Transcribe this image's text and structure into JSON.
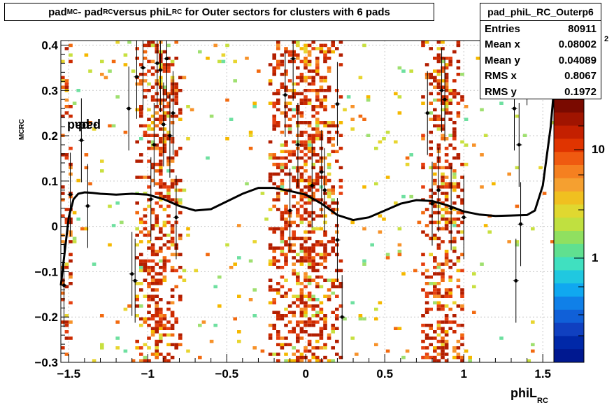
{
  "title": {
    "main": "pad",
    "sub1": "MC",
    "mid": " - pad",
    "sub2": "RC",
    "rest": " versus phiL",
    "sub3": "RC",
    "end": " for Outer sectors for clusters with 6 pads"
  },
  "stats": {
    "name": "pad_phiL_RC_Outerp6",
    "rows": [
      {
        "label": "Entries",
        "value": "80911"
      },
      {
        "label": "Mean x",
        "value": "0.08002"
      },
      {
        "label": "Mean y",
        "value": "0.04089"
      },
      {
        "label": "RMS x",
        "value": "0.8067"
      },
      {
        "label": "RMS y",
        "value": "0.1972"
      }
    ]
  },
  "xlabel": {
    "main": "phiL",
    "sub": "RC"
  },
  "ylabel": {
    "a": "pad",
    "sub1": "MC",
    "b": " - pad",
    "sub2": "RC"
  },
  "zaxis": {
    "labels": [
      "1",
      "10"
    ],
    "exp_label": "2"
  },
  "chart_data": {
    "type": "heatmap",
    "xlim": [
      -1.55,
      1.57
    ],
    "ylim": [
      -0.3,
      0.41
    ],
    "xticks": [
      -1.5,
      -1,
      -0.5,
      0,
      0.5,
      1,
      1.5
    ],
    "xtick_labels": [
      "−1.5",
      "−1",
      "−0.5",
      "0",
      "0.5",
      "1",
      "1.5"
    ],
    "yticks": [
      -0.3,
      -0.2,
      -0.1,
      0,
      0.1,
      0.2,
      0.3,
      0.4
    ],
    "ytick_labels": [
      "−0.3",
      "−0.2",
      "−0.1",
      "0",
      "0.1",
      "0.2",
      "0.3",
      "0.4"
    ],
    "grid": true,
    "dense_bands": [
      [
        -1.08,
        -0.8
      ],
      [
        -0.25,
        0.22
      ],
      [
        0.73,
        0.98
      ]
    ],
    "fit_curve": {
      "x": [
        -1.55,
        -1.53,
        -1.5,
        -1.47,
        -1.44,
        -1.4,
        -1.35,
        -1.3,
        -1.2,
        -1.1,
        -1.0,
        -0.9,
        -0.8,
        -0.7,
        -0.6,
        -0.5,
        -0.4,
        -0.3,
        -0.2,
        -0.1,
        0.0,
        0.1,
        0.2,
        0.3,
        0.4,
        0.5,
        0.6,
        0.7,
        0.8,
        0.9,
        1.0,
        1.1,
        1.2,
        1.3,
        1.4,
        1.45,
        1.5,
        1.55,
        1.57
      ],
      "y": [
        -0.13,
        -0.07,
        0.02,
        0.06,
        0.072,
        0.075,
        0.074,
        0.072,
        0.07,
        0.072,
        0.07,
        0.06,
        0.045,
        0.035,
        0.038,
        0.055,
        0.072,
        0.085,
        0.085,
        0.078,
        0.07,
        0.05,
        0.025,
        0.014,
        0.02,
        0.035,
        0.05,
        0.058,
        0.056,
        0.046,
        0.033,
        0.026,
        0.023,
        0.024,
        0.025,
        0.035,
        0.09,
        0.22,
        0.3
      ]
    },
    "profile_points": [
      {
        "x": -1.53,
        "y": -0.13
      },
      {
        "x": -1.49,
        "y": 0.07
      },
      {
        "x": -1.42,
        "y": 0.19
      },
      {
        "x": -1.38,
        "y": 0.045
      },
      {
        "x": -1.12,
        "y": 0.26
      },
      {
        "x": -1.1,
        "y": -0.105
      },
      {
        "x": -1.08,
        "y": -0.12
      },
      {
        "x": -1.07,
        "y": 0.33
      },
      {
        "x": -1.03,
        "y": 0.35
      },
      {
        "x": -0.98,
        "y": 0.06
      },
      {
        "x": -0.96,
        "y": 0.18
      },
      {
        "x": -0.94,
        "y": 0.36
      },
      {
        "x": -0.92,
        "y": 0.345
      },
      {
        "x": -0.9,
        "y": 0.225
      },
      {
        "x": -0.88,
        "y": 0.37
      },
      {
        "x": -0.86,
        "y": 0.2
      },
      {
        "x": -0.84,
        "y": 0.25
      },
      {
        "x": -0.82,
        "y": 0.02
      },
      {
        "x": -0.13,
        "y": 0.29
      },
      {
        "x": -0.1,
        "y": 0.035
      },
      {
        "x": -0.08,
        "y": 0.37
      },
      {
        "x": -0.05,
        "y": 0.18
      },
      {
        "x": 0.04,
        "y": 0.09
      },
      {
        "x": 0.1,
        "y": 0.12
      },
      {
        "x": 0.12,
        "y": 0.08
      },
      {
        "x": 0.2,
        "y": 0.27
      },
      {
        "x": 0.2,
        "y": -0.03
      },
      {
        "x": 0.23,
        "y": -0.2
      },
      {
        "x": 0.77,
        "y": 0.25
      },
      {
        "x": 0.8,
        "y": 0.05
      },
      {
        "x": 0.84,
        "y": 0.08
      },
      {
        "x": 0.86,
        "y": 0.3
      },
      {
        "x": 0.88,
        "y": 0.28
      },
      {
        "x": 0.92,
        "y": 0.04
      },
      {
        "x": 1.0,
        "y": 0.02
      },
      {
        "x": 1.32,
        "y": 0.26
      },
      {
        "x": 1.33,
        "y": -0.12
      },
      {
        "x": 1.35,
        "y": 0.18
      },
      {
        "x": 1.36,
        "y": 0.005
      },
      {
        "x": 1.38,
        "y": 0.38
      },
      {
        "x": 1.4,
        "y": 0.36
      },
      {
        "x": 1.52,
        "y": 0.5
      }
    ]
  },
  "colors": {
    "frame": "#000000",
    "grid": "#c8c8c8",
    "fit": "#000000"
  }
}
